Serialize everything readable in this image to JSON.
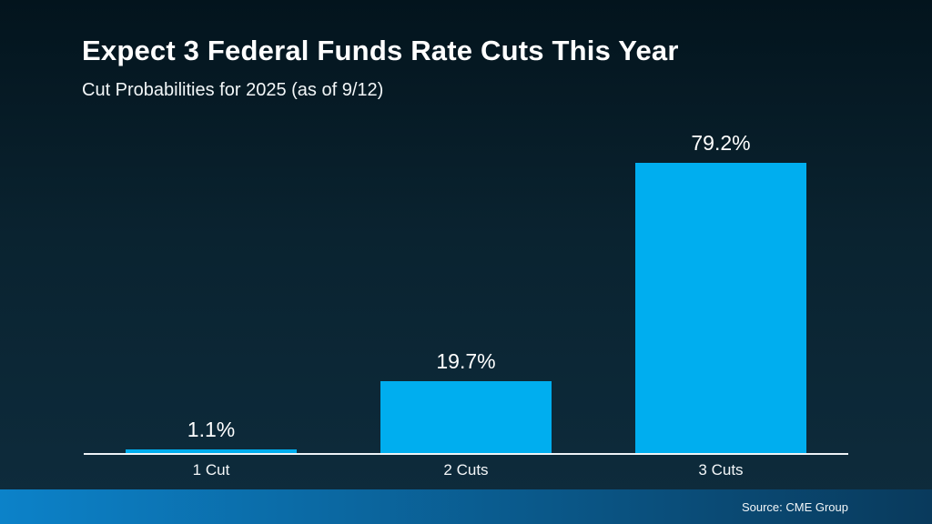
{
  "header": {
    "title": "Expect 3 Federal Funds Rate Cuts This Year",
    "subtitle": "Cut Probabilities for 2025 (as of 9/12)"
  },
  "chart_data": {
    "type": "bar",
    "title": "Expect 3 Federal Funds Rate Cuts This Year",
    "subtitle": "Cut Probabilities for 2025 (as of 9/12)",
    "categories": [
      "1 Cut",
      "2 Cuts",
      "3 Cuts"
    ],
    "values": [
      1.1,
      19.7,
      79.2
    ],
    "value_labels": [
      "1.1%",
      "19.7%",
      "79.2%"
    ],
    "xlabel": "",
    "ylabel": "",
    "ylim": [
      0,
      100
    ],
    "grid": false,
    "legend": false,
    "bar_color": "#00AEEF",
    "axis_line_color": "#EEF3F6",
    "label_color": "#FFFFFF"
  },
  "footer": {
    "source": "Source: CME Group",
    "gradient_left": "#0C82C9",
    "gradient_right": "#093A5C"
  },
  "colors": {
    "background_top": "#03141D",
    "background_middle": "#0A2330",
    "background_bottom": "#0E2C3D",
    "text": "#FFFFFF"
  }
}
